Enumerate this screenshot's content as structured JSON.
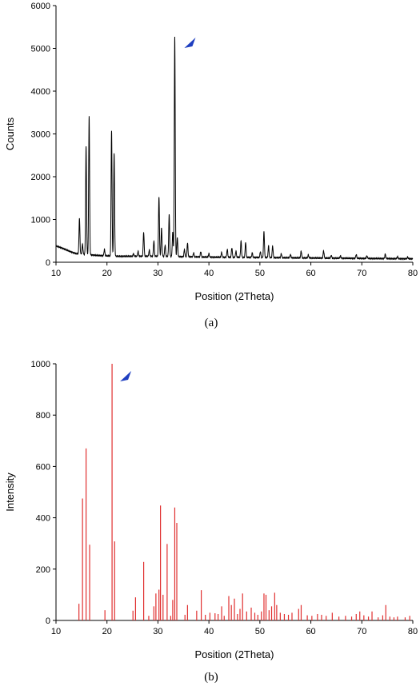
{
  "chart_data": [
    {
      "type": "line",
      "panel_label": "(a)",
      "xlabel": "Position (2Theta)",
      "ylabel": "Counts",
      "xlim": [
        10,
        80
      ],
      "ylim": [
        0,
        6000
      ],
      "x_ticks": [
        10,
        20,
        30,
        40,
        50,
        60,
        70,
        80
      ],
      "y_ticks": [
        0,
        1000,
        2000,
        3000,
        4000,
        5000,
        6000
      ],
      "grid": false,
      "color": "#000000",
      "baseline": [
        [
          10,
          380
        ],
        [
          11,
          340
        ],
        [
          12,
          290
        ],
        [
          13,
          240
        ],
        [
          14,
          200
        ],
        [
          16,
          180
        ],
        [
          18,
          160
        ],
        [
          20,
          150
        ],
        [
          22,
          140
        ],
        [
          25,
          140
        ],
        [
          28,
          140
        ],
        [
          30,
          140
        ],
        [
          35,
          130
        ],
        [
          40,
          120
        ],
        [
          45,
          115
        ],
        [
          50,
          110
        ],
        [
          55,
          105
        ],
        [
          60,
          100
        ],
        [
          65,
          95
        ],
        [
          70,
          90
        ],
        [
          75,
          85
        ],
        [
          80,
          80
        ]
      ],
      "peaks": [
        {
          "x": 14.6,
          "y": 1030
        },
        {
          "x": 15.2,
          "y": 420
        },
        {
          "x": 15.9,
          "y": 2700
        },
        {
          "x": 16.5,
          "y": 3420
        },
        {
          "x": 19.5,
          "y": 300
        },
        {
          "x": 20.9,
          "y": 3080
        },
        {
          "x": 21.4,
          "y": 2560
        },
        {
          "x": 25.2,
          "y": 200
        },
        {
          "x": 26.1,
          "y": 250
        },
        {
          "x": 27.2,
          "y": 700
        },
        {
          "x": 28.3,
          "y": 280
        },
        {
          "x": 29.2,
          "y": 500
        },
        {
          "x": 30.2,
          "y": 1530
        },
        {
          "x": 30.7,
          "y": 800
        },
        {
          "x": 31.4,
          "y": 400
        },
        {
          "x": 32.2,
          "y": 1110
        },
        {
          "x": 32.9,
          "y": 700
        },
        {
          "x": 33.3,
          "y": 5280
        },
        {
          "x": 33.8,
          "y": 580
        },
        {
          "x": 35.2,
          "y": 300
        },
        {
          "x": 35.8,
          "y": 450
        },
        {
          "x": 37.0,
          "y": 220
        },
        {
          "x": 38.4,
          "y": 250
        },
        {
          "x": 40.0,
          "y": 200
        },
        {
          "x": 42.5,
          "y": 230
        },
        {
          "x": 43.6,
          "y": 300
        },
        {
          "x": 44.5,
          "y": 340
        },
        {
          "x": 45.3,
          "y": 260
        },
        {
          "x": 46.3,
          "y": 500
        },
        {
          "x": 47.2,
          "y": 470
        },
        {
          "x": 48.5,
          "y": 220
        },
        {
          "x": 50.1,
          "y": 250
        },
        {
          "x": 50.8,
          "y": 720
        },
        {
          "x": 51.7,
          "y": 380
        },
        {
          "x": 52.5,
          "y": 380
        },
        {
          "x": 54.2,
          "y": 200
        },
        {
          "x": 56.0,
          "y": 180
        },
        {
          "x": 58.1,
          "y": 260
        },
        {
          "x": 59.5,
          "y": 170
        },
        {
          "x": 62.5,
          "y": 270
        },
        {
          "x": 64.0,
          "y": 160
        },
        {
          "x": 65.8,
          "y": 150
        },
        {
          "x": 68.9,
          "y": 180
        },
        {
          "x": 71.0,
          "y": 150
        },
        {
          "x": 74.6,
          "y": 190
        },
        {
          "x": 77.0,
          "y": 130
        },
        {
          "x": 79.0,
          "y": 120
        }
      ],
      "annotation": {
        "type": "arrow",
        "color": "#1f3fc0",
        "points_to_x": 33.3
      }
    },
    {
      "type": "bar",
      "panel_label": "(b)",
      "xlabel": "Position (2Theta)",
      "ylabel": "Intensity",
      "xlim": [
        10,
        80
      ],
      "ylim": [
        0,
        1000
      ],
      "x_ticks": [
        10,
        20,
        30,
        40,
        50,
        60,
        70,
        80
      ],
      "y_ticks": [
        0,
        200,
        400,
        600,
        800,
        1000
      ],
      "grid": false,
      "color": "#e03030",
      "sticks": [
        [
          14.5,
          65
        ],
        [
          15.2,
          475
        ],
        [
          15.9,
          670
        ],
        [
          16.6,
          295
        ],
        [
          19.6,
          40
        ],
        [
          21.0,
          1000
        ],
        [
          21.5,
          308
        ],
        [
          25.1,
          38
        ],
        [
          25.6,
          90
        ],
        [
          27.2,
          228
        ],
        [
          28.2,
          18
        ],
        [
          29.2,
          55
        ],
        [
          29.6,
          105
        ],
        [
          30.2,
          120
        ],
        [
          30.5,
          448
        ],
        [
          31.0,
          100
        ],
        [
          31.8,
          298
        ],
        [
          32.5,
          18
        ],
        [
          32.9,
          80
        ],
        [
          33.3,
          440
        ],
        [
          33.7,
          380
        ],
        [
          35.3,
          22
        ],
        [
          35.8,
          60
        ],
        [
          37.6,
          38
        ],
        [
          38.5,
          118
        ],
        [
          39.3,
          22
        ],
        [
          40.2,
          30
        ],
        [
          41.2,
          28
        ],
        [
          41.8,
          25
        ],
        [
          42.5,
          55
        ],
        [
          43.0,
          18
        ],
        [
          43.9,
          95
        ],
        [
          44.4,
          60
        ],
        [
          45.0,
          85
        ],
        [
          45.6,
          25
        ],
        [
          46.1,
          45
        ],
        [
          46.6,
          105
        ],
        [
          47.4,
          35
        ],
        [
          48.3,
          50
        ],
        [
          49.0,
          30
        ],
        [
          49.6,
          22
        ],
        [
          50.3,
          35
        ],
        [
          50.8,
          105
        ],
        [
          51.2,
          100
        ],
        [
          51.8,
          40
        ],
        [
          52.3,
          55
        ],
        [
          52.9,
          108
        ],
        [
          53.3,
          60
        ],
        [
          54.0,
          30
        ],
        [
          54.8,
          25
        ],
        [
          55.6,
          22
        ],
        [
          56.3,
          30
        ],
        [
          57.6,
          45
        ],
        [
          58.1,
          60
        ],
        [
          59.3,
          20
        ],
        [
          60.2,
          18
        ],
        [
          61.3,
          25
        ],
        [
          62.1,
          22
        ],
        [
          63.0,
          18
        ],
        [
          64.2,
          30
        ],
        [
          65.5,
          15
        ],
        [
          66.8,
          18
        ],
        [
          68.0,
          15
        ],
        [
          68.9,
          25
        ],
        [
          69.6,
          35
        ],
        [
          70.4,
          20
        ],
        [
          71.3,
          15
        ],
        [
          72.0,
          35
        ],
        [
          73.2,
          12
        ],
        [
          74.1,
          20
        ],
        [
          74.7,
          60
        ],
        [
          75.5,
          15
        ],
        [
          76.3,
          12
        ],
        [
          77.0,
          15
        ],
        [
          78.5,
          12
        ],
        [
          79.4,
          18
        ]
      ],
      "annotation": {
        "type": "arrow",
        "color": "#1f3fc0",
        "points_to_x": 21.0
      }
    }
  ]
}
